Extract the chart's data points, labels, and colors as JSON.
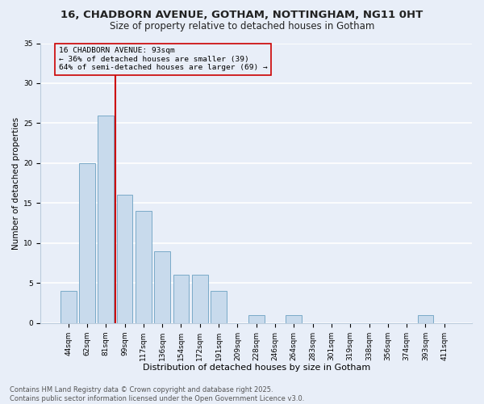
{
  "title1": "16, CHADBORN AVENUE, GOTHAM, NOTTINGHAM, NG11 0HT",
  "title2": "Size of property relative to detached houses in Gotham",
  "xlabel": "Distribution of detached houses by size in Gotham",
  "ylabel": "Number of detached properties",
  "categories": [
    "44sqm",
    "62sqm",
    "81sqm",
    "99sqm",
    "117sqm",
    "136sqm",
    "154sqm",
    "172sqm",
    "191sqm",
    "209sqm",
    "228sqm",
    "246sqm",
    "264sqm",
    "283sqm",
    "301sqm",
    "319sqm",
    "338sqm",
    "356sqm",
    "374sqm",
    "393sqm",
    "411sqm"
  ],
  "values": [
    4,
    20,
    26,
    16,
    14,
    9,
    6,
    6,
    4,
    0,
    1,
    0,
    1,
    0,
    0,
    0,
    0,
    0,
    0,
    1,
    0
  ],
  "bar_color": "#c8daec",
  "bar_edge_color": "#7aaac8",
  "vline_x_idx": 2.5,
  "vline_color": "#cc0000",
  "annotation_title": "16 CHADBORN AVENUE: 93sqm",
  "annotation_line1": "← 36% of detached houses are smaller (39)",
  "annotation_line2": "64% of semi-detached houses are larger (69) →",
  "annotation_box_color": "#cc0000",
  "ylim": [
    0,
    35
  ],
  "yticks": [
    0,
    5,
    10,
    15,
    20,
    25,
    30,
    35
  ],
  "footnote1": "Contains HM Land Registry data © Crown copyright and database right 2025.",
  "footnote2": "Contains public sector information licensed under the Open Government Licence v3.0.",
  "bg_color": "#e8eef8",
  "grid_color": "#ffffff",
  "title1_fontsize": 9.5,
  "title2_fontsize": 8.5,
  "xlabel_fontsize": 8,
  "ylabel_fontsize": 7.5,
  "tick_fontsize": 6.5,
  "annot_fontsize": 6.8,
  "footnote_fontsize": 6.0
}
